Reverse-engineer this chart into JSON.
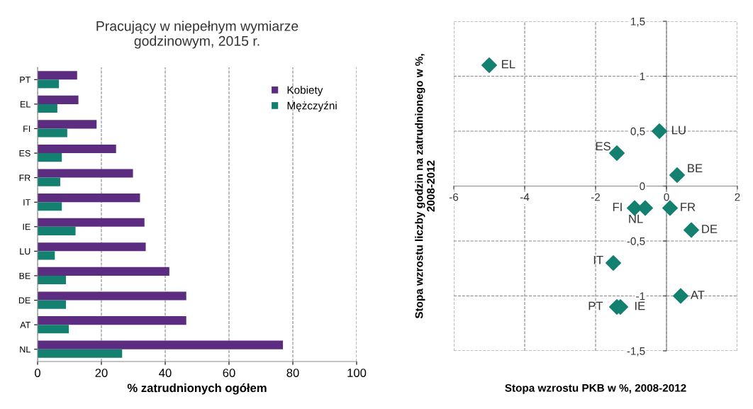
{
  "chart_data": [
    {
      "type": "bar",
      "orientation": "horizontal",
      "title": "Pracujący w niepełnym wymiarze\ngodzinowym, 2015 r.",
      "xlabel": "% zatrudnionych ogółem",
      "categories": [
        "PT",
        "EL",
        "FI",
        "ES",
        "FR",
        "IT",
        "IE",
        "LU",
        "BE",
        "DE",
        "AT",
        "NL"
      ],
      "series": [
        {
          "name": "Kobiety",
          "color": "#5b2c7f",
          "values": [
            12.4,
            12.8,
            18.5,
            24.6,
            29.9,
            32.1,
            33.5,
            33.9,
            41.3,
            46.6,
            46.6,
            76.9
          ]
        },
        {
          "name": "Mężczyźni",
          "color": "#138070",
          "values": [
            6.7,
            6.2,
            9.3,
            7.6,
            7.1,
            7.6,
            11.9,
            5.4,
            8.9,
            8.9,
            9.8,
            26.5
          ]
        }
      ],
      "xlim": [
        0,
        100
      ],
      "xticks": [
        0,
        20,
        40,
        60,
        80,
        100
      ],
      "grid": "x",
      "legend": "top right"
    },
    {
      "type": "scatter",
      "xlabel": "Stopa wzrostu PKB w %, 2008-2012",
      "ylabel": "Stopa wzrostu liczby godzin na zatrudnionego w %,\n2008-2012",
      "x": [
        -5.0,
        -0.2,
        -1.4,
        0.3,
        -0.9,
        -0.6,
        0.1,
        0.7,
        -1.5,
        0.4,
        -1.4,
        -1.3
      ],
      "series": [
        {
          "color": "#138070",
          "values": [
            1.1,
            0.5,
            0.3,
            0.1,
            -0.2,
            -0.2,
            -0.2,
            -0.4,
            -0.7,
            -1.0,
            -1.1,
            -1.1
          ]
        }
      ],
      "marker": "diamond",
      "annotations": [
        {
          "text": "EL",
          "x": -5.0,
          "y": 1.1
        },
        {
          "text": "LU",
          "x": -0.2,
          "y": 0.5
        },
        {
          "text": "ES",
          "x": -1.4,
          "y": 0.3
        },
        {
          "text": "BE",
          "x": 0.3,
          "y": 0.1
        },
        {
          "text": "FI",
          "x": -0.9,
          "y": -0.2
        },
        {
          "text": "NL",
          "x": -0.6,
          "y": -0.2
        },
        {
          "text": "FR",
          "x": 0.1,
          "y": -0.2
        },
        {
          "text": "DE",
          "x": 0.7,
          "y": -0.4
        },
        {
          "text": "IT",
          "x": -1.5,
          "y": -0.7
        },
        {
          "text": "AT",
          "x": 0.4,
          "y": -1.0
        },
        {
          "text": "PT",
          "x": -1.4,
          "y": -1.1
        },
        {
          "text": "IE",
          "x": -1.3,
          "y": -1.1
        }
      ],
      "xlim": [
        -6,
        2
      ],
      "xticks": [
        -6,
        -4,
        -2,
        0,
        2
      ],
      "ylim": [
        -1.5,
        1.5
      ],
      "yticks": [
        {
          "value": -1.5,
          "label": "-1,5"
        },
        -1,
        {
          "value": -0.5,
          "label": "-0,5"
        },
        0,
        {
          "value": 0.5,
          "label": "0,5"
        },
        1,
        {
          "value": 1.5,
          "label": "1,5"
        }
      ],
      "grid": true
    }
  ]
}
